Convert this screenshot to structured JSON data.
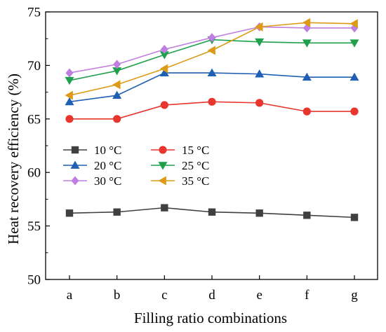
{
  "chart_data": {
    "type": "line",
    "xlabel": "Filling ratio combinations",
    "ylabel": "Heat recovery efficiency (%)",
    "categories": [
      "a",
      "b",
      "c",
      "d",
      "e",
      "f",
      "g"
    ],
    "ylim": [
      50,
      75
    ],
    "yticks": [
      50,
      55,
      60,
      65,
      70,
      75
    ],
    "grid": false,
    "legend": {
      "placement": "center-left",
      "columns": 2
    },
    "series": [
      {
        "name": "10 °C",
        "color": "#404040",
        "marker": "square",
        "values": [
          56.2,
          56.3,
          56.7,
          56.3,
          56.2,
          56.0,
          55.8
        ]
      },
      {
        "name": "15 °C",
        "color": "#e8352e",
        "marker": "circle",
        "values": [
          65.0,
          65.0,
          66.3,
          66.6,
          66.5,
          65.7,
          65.7
        ]
      },
      {
        "name": "20 °C",
        "color": "#1f5fb4",
        "marker": "triangle-up",
        "values": [
          66.6,
          67.2,
          69.3,
          69.3,
          69.2,
          68.9,
          68.9
        ]
      },
      {
        "name": "25 °C",
        "color": "#1fa04b",
        "marker": "triangle-down",
        "values": [
          68.6,
          69.5,
          71.0,
          72.4,
          72.2,
          72.1,
          72.1
        ]
      },
      {
        "name": "30 °C",
        "color": "#bf7fe0",
        "marker": "diamond",
        "values": [
          69.3,
          70.1,
          71.5,
          72.6,
          73.6,
          73.5,
          73.5
        ]
      },
      {
        "name": "35 °C",
        "color": "#dc9a16",
        "marker": "triangle-left",
        "values": [
          67.2,
          68.2,
          69.7,
          71.4,
          73.6,
          74.0,
          73.9
        ]
      }
    ]
  }
}
